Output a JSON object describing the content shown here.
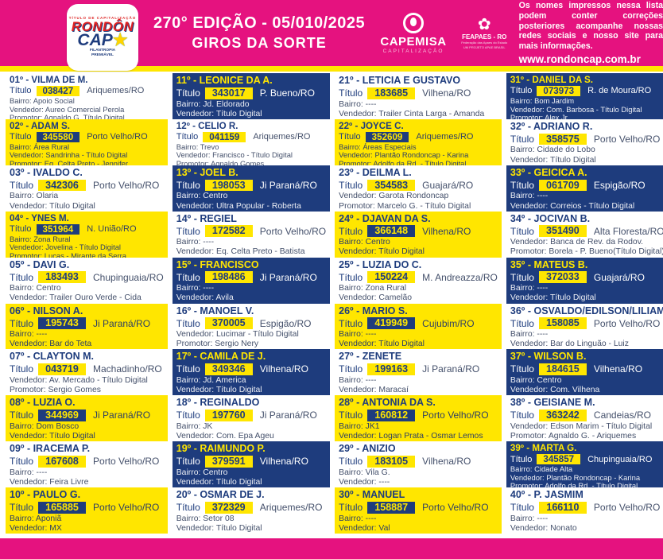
{
  "header": {
    "logo": {
      "top": "TÍTULO DE CAPITALIZAÇÃO",
      "line1": "RONDÔN",
      "line2": "CAP",
      "star": "★",
      "bottom1": "FILANTROPIA",
      "bottom2": "PREMIÁVEL"
    },
    "edition": "270° EDIÇÃO - 05/010/2025",
    "subtitle": "GIROS DA SORTE",
    "capemisa": {
      "name": "CAPEMISA",
      "sub": "CAPITALIZAÇÃO"
    },
    "feapaes": {
      "icon": "✿",
      "name": "FEAPAES - RO",
      "sub1": "Federação das Apaes do Estado",
      "sub2": "UM PROJETO APAE BRASIL"
    },
    "notice": "Os nomes impressos nessa lista podem conter correções posteriores acompanhe nossas redes sociais e nosso site para mais informações.",
    "website": "www.rondoncap.com.br"
  },
  "labels": {
    "titulo": "Título",
    "bairro": "Bairro:",
    "vendedor": "Vendedor:",
    "promotor": "Promotor:"
  },
  "colors": {
    "pink": "#E5127F",
    "yellow": "#FFE600",
    "navy": "#1E3C7D",
    "body_text": "#44506B"
  },
  "columns": [
    {
      "entries": [
        {
          "pos": "01º",
          "name": "VILMA DE M.",
          "titulo": "038427",
          "city": "Ariquemes/RO",
          "bairro": "Apoio Social",
          "vendedor": "Aureo Comercial Perola",
          "promotor": "Agnaldo G. Título Digital",
          "style": "white"
        },
        {
          "pos": "02º",
          "name": "ADAM S.",
          "titulo": "345580",
          "city": "Porto Velho/RO",
          "bairro": "Área Rural",
          "vendedor": "Sandrinha - Título Digital",
          "promotor": "Eq. Celta Preto - Jennifer",
          "style": "yellow"
        },
        {
          "pos": "03º",
          "name": "IVALDO C.",
          "titulo": "342306",
          "city": "Porto Velho/RO",
          "bairro": "Olaria",
          "vendedor": "Título Digital",
          "style": "white"
        },
        {
          "pos": "04º",
          "name": "YNES M.",
          "titulo": "351964",
          "city": "N. União/RO",
          "bairro": "Zona Rural",
          "vendedor": "Jovelina - Título Digital",
          "promotor": "Lucas - Mirante da Serra",
          "style": "yellow"
        },
        {
          "pos": "05º",
          "name": "DAVI G.",
          "titulo": "183493",
          "city": "Chupinguaia/RO",
          "bairro": "Centro",
          "vendedor": "Trailer Ouro Verde - Cida",
          "style": "white"
        },
        {
          "pos": "06º",
          "name": "NILSON A.",
          "titulo": "195743",
          "city": "Ji Paraná/RO",
          "bairro": "----",
          "vendedor": "Bar do Teta",
          "style": "yellow"
        },
        {
          "pos": "07º",
          "name": "CLAYTON M.",
          "titulo": "043719",
          "city": "Machadinho/RO",
          "vendedor": "Av. Mercado - Título Digital",
          "promotor": "Sergio Gomes",
          "style": "white"
        },
        {
          "pos": "08º",
          "name": "LUZIA O.",
          "titulo": "344969",
          "city": "Ji Paraná/RO",
          "bairro": "Dom Bosco",
          "vendedor": "Título Digital",
          "style": "yellow"
        },
        {
          "pos": "09º",
          "name": "IRACEMA P.",
          "titulo": "167608",
          "city": "Porto Velho/RO",
          "bairro": "----",
          "vendedor": "Feira Livre",
          "style": "white"
        },
        {
          "pos": "10º",
          "name": "PAULO G.",
          "titulo": "165885",
          "city": "Porto Velho/RO",
          "bairro": "Aponiã",
          "vendedor": "MX",
          "style": "yellow"
        }
      ]
    },
    {
      "entries": [
        {
          "pos": "11º",
          "name": "LEONICE DA A.",
          "titulo": "343017",
          "city": "P. Bueno/RO",
          "bairro": "Jd. Eldorado",
          "vendedor": "Título Digital",
          "style": "blue"
        },
        {
          "pos": "12º",
          "name": "CELIO R.",
          "titulo": "041159",
          "city": "Ariquemes/RO",
          "bairro": "Trevo",
          "vendedor": "Francisco - Título Digital",
          "promotor": "Agnaldo Gomes",
          "style": "white"
        },
        {
          "pos": "13º",
          "name": "JOEL B.",
          "titulo": "198053",
          "city": "Ji Paraná/RO",
          "bairro": "Centro",
          "vendedor": "Ultra Popular - Roberta",
          "style": "blue"
        },
        {
          "pos": "14º",
          "name": "REGIEL",
          "titulo": "172582",
          "city": "Porto Velho/RO",
          "bairro": "----",
          "vendedor": "Eq. Celta Preto - Batista",
          "style": "white"
        },
        {
          "pos": "15º",
          "name": "FRANCISCO",
          "titulo": "198486",
          "city": "Ji Paraná/RO",
          "bairro": "----",
          "vendedor": "Avila",
          "style": "blue"
        },
        {
          "pos": "16º",
          "name": "MANOEL V.",
          "titulo": "370005",
          "city": "Espigão/RO",
          "vendedor": "Lucimar - Título Digital",
          "promotor": "Sergio Nery",
          "style": "white"
        },
        {
          "pos": "17º",
          "name": "CAMILA DE J.",
          "titulo": "349346",
          "city": "Vilhena/RO",
          "bairro": "Jd. America",
          "vendedor": "Título Digital",
          "style": "blue"
        },
        {
          "pos": "18º",
          "name": "REGINALDO",
          "titulo": "197760",
          "city": "Ji Paraná/RO",
          "bairro": "JK",
          "vendedor": "Com. Epa Ageu",
          "style": "white"
        },
        {
          "pos": "19º",
          "name": "RAIMUNDO P.",
          "titulo": "379591",
          "city": "Vilhena/RO",
          "bairro": "Centro",
          "vendedor": "Título Digital",
          "style": "blue"
        },
        {
          "pos": "20º",
          "name": "OSMAR DE J.",
          "titulo": "372329",
          "city": "Ariquemes/RO",
          "bairro": "Setor 08",
          "vendedor": "Título Digital",
          "style": "white"
        }
      ]
    },
    {
      "entries": [
        {
          "pos": "21º",
          "name": "LETICIA E GUSTAVO",
          "titulo": "183685",
          "city": "Vilhena/RO",
          "bairro": "----",
          "vendedor": "Trailer Cinta Larga - Amanda",
          "style": "white"
        },
        {
          "pos": "22º",
          "name": "JOYCE C.",
          "titulo": "352609",
          "city": "Ariquemes/RO",
          "bairro": "Áreas Especiais",
          "vendedor": "Plantão Rondoncap - Karina",
          "promotor": "Adolfo da Rd. - Título Digital",
          "style": "yellow"
        },
        {
          "pos": "23º",
          "name": "DEILMA L.",
          "titulo": "354583",
          "city": "Guajará/RO",
          "vendedor": "Garota Rondoncap",
          "promotor": "Marcelo G. - Título Digital",
          "style": "white"
        },
        {
          "pos": "24º",
          "name": "DJAVAN DA S.",
          "titulo": "366148",
          "city": "Vilhena/RO",
          "bairro": "Centro",
          "vendedor": "Título Digital",
          "style": "yellow"
        },
        {
          "pos": "25º",
          "name": "LUZIA DO C.",
          "titulo": "150224",
          "city": "M. Andreazza/RO",
          "bairro": "Zona Rural",
          "vendedor": "Camelão",
          "style": "white"
        },
        {
          "pos": "26º",
          "name": "MARIO S.",
          "titulo": "419949",
          "city": "Cujubim/RO",
          "bairro": "----",
          "vendedor": "Título Digital",
          "style": "yellow"
        },
        {
          "pos": "27º",
          "name": "ZENETE",
          "titulo": "199163",
          "city": "Ji Paraná/RO",
          "bairro": "----",
          "vendedor": "Maracaí",
          "style": "white"
        },
        {
          "pos": "28º",
          "name": "ANTONIA DA S.",
          "titulo": "160812",
          "city": "Porto Velho/RO",
          "bairro": "JK1",
          "vendedor": "Logan Prata - Osmar Lemos",
          "style": "yellow"
        },
        {
          "pos": "29º",
          "name": "ANIZIO",
          "titulo": "183105",
          "city": "Vilhena/RO",
          "bairro": "Vila G.",
          "vendedor": "----",
          "style": "white"
        },
        {
          "pos": "30º",
          "name": "MANUEL",
          "titulo": "158887",
          "city": "Porto Velho/RO",
          "bairro": "----",
          "vendedor": "Val",
          "style": "yellow"
        }
      ]
    },
    {
      "entries": [
        {
          "pos": "31º",
          "name": "DANIEL DA S.",
          "titulo": "073973",
          "city": "R. de Moura/RO",
          "bairro": "Bom Jardim",
          "vendedor": "Com. Barbosa - Título Digital",
          "promotor": "Alex Jr.",
          "style": "blue"
        },
        {
          "pos": "32º",
          "name": "ADRIANO R.",
          "titulo": "358575",
          "city": "Porto Velho/RO",
          "bairro": "Cidade do Lobo",
          "vendedor": "Título Digital",
          "style": "white"
        },
        {
          "pos": "33º",
          "name": "GEICICA A.",
          "titulo": "061709",
          "city": "Espigão/RO",
          "bairro": "----",
          "vendedor": "Correios - Título Digital",
          "style": "blue"
        },
        {
          "pos": "34º",
          "name": "JOCIVAN B.",
          "titulo": "351490",
          "city": "Alta Floresta/RO",
          "vendedor": "Banca de Rev. da Rodov.",
          "promotor": "Borela - P. Bueno(Título Digital)",
          "style": "white"
        },
        {
          "pos": "35º",
          "name": "MATEUS B.",
          "titulo": "372033",
          "city": "Guajará/RO",
          "bairro": "----",
          "vendedor": "Título Digital",
          "style": "blue"
        },
        {
          "pos": "36º",
          "name": "OSVALDO/EDILSON/LILIAM",
          "titulo": "158085",
          "city": "Porto Velho/RO",
          "bairro": "----",
          "vendedor": "Bar do Linguão - Luiz",
          "style": "white"
        },
        {
          "pos": "37º",
          "name": "WILSON B.",
          "titulo": "184615",
          "city": "Vilhena/RO",
          "bairro": "Centro",
          "vendedor": "Com. Vilhena",
          "style": "blue"
        },
        {
          "pos": "38º",
          "name": "GEISIANE M.",
          "titulo": "363242",
          "city": "Candeias/RO",
          "vendedor": "Edson Marim - Título Digital",
          "promotor": "Agnaldo G. - Ariquemes",
          "style": "white"
        },
        {
          "pos": "39º",
          "name": "MARTA G.",
          "titulo": "345857",
          "city": "Chupinguaia/RO",
          "bairro": "Cidade Alta",
          "vendedor": "Plantão Rondoncap - Karina",
          "promotor": "Adolfo da Rd. - Título Digital",
          "style": "blue"
        },
        {
          "pos": "40º",
          "name": "P. JASMIM",
          "titulo": "166110",
          "city": "Porto Velho/RO",
          "bairro": "----",
          "vendedor": "Nonato",
          "style": "white"
        }
      ]
    }
  ]
}
